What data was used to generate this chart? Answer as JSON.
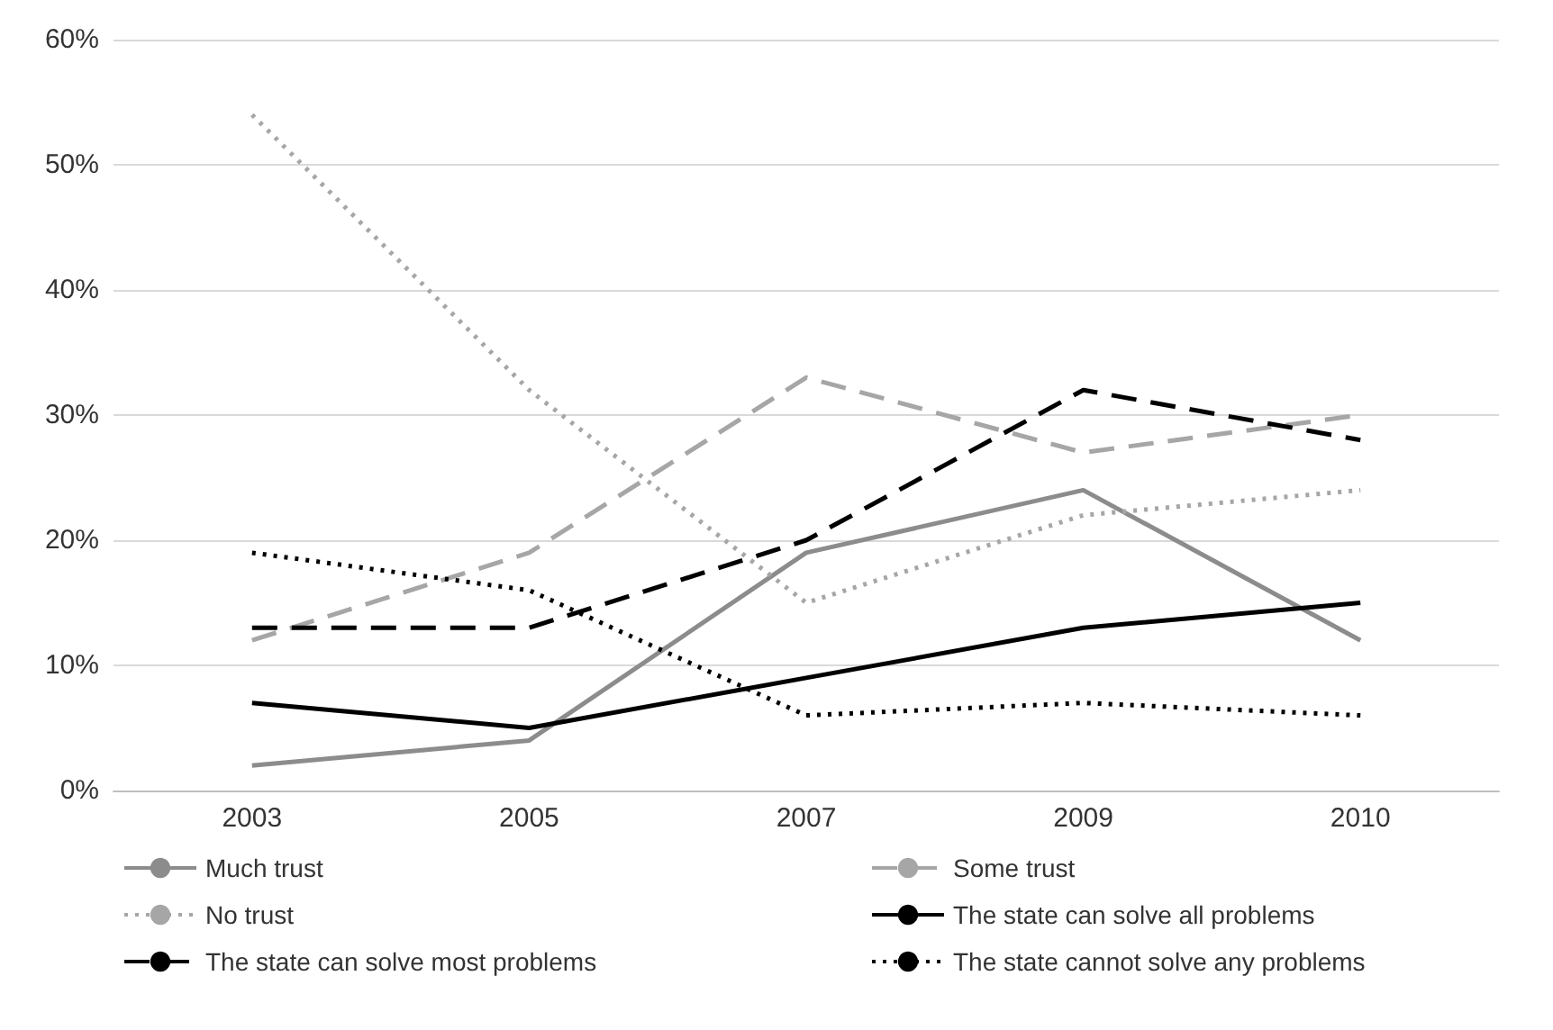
{
  "chart_data": {
    "type": "line",
    "categories": [
      "2003",
      "2005",
      "2007",
      "2009",
      "2010"
    ],
    "series": [
      {
        "name": "Much trust",
        "color": "#8c8c8c",
        "line_style": "solid",
        "values": [
          2,
          4,
          19,
          24,
          12
        ]
      },
      {
        "name": "Some trust",
        "color": "#a6a6a6",
        "line_style": "dashed",
        "values": [
          12,
          19,
          33,
          27,
          30
        ]
      },
      {
        "name": "No trust",
        "color": "#a6a6a6",
        "line_style": "dotted",
        "values": [
          54,
          32,
          15,
          22,
          24
        ]
      },
      {
        "name": "The state can solve all problems",
        "color": "#000000",
        "line_style": "solid",
        "values": [
          7,
          5,
          9,
          13,
          15
        ]
      },
      {
        "name": "The state can solve most problems",
        "color": "#000000",
        "line_style": "dashed",
        "values": [
          13,
          13,
          20,
          32,
          28
        ]
      },
      {
        "name": "The state cannot solve any problems",
        "color": "#000000",
        "line_style": "dotted",
        "values": [
          19,
          16,
          6,
          7,
          6
        ]
      }
    ],
    "ylim": [
      0,
      60
    ],
    "yticks": [
      {
        "value": 0,
        "label": "0%"
      },
      {
        "value": 10,
        "label": "10%"
      },
      {
        "value": 20,
        "label": "20%"
      },
      {
        "value": 30,
        "label": "30%"
      },
      {
        "value": 40,
        "label": "40%"
      },
      {
        "value": 50,
        "label": "50%"
      },
      {
        "value": 60,
        "label": "60%"
      }
    ],
    "grid": "y",
    "legend": "bottom",
    "marker": "none"
  }
}
